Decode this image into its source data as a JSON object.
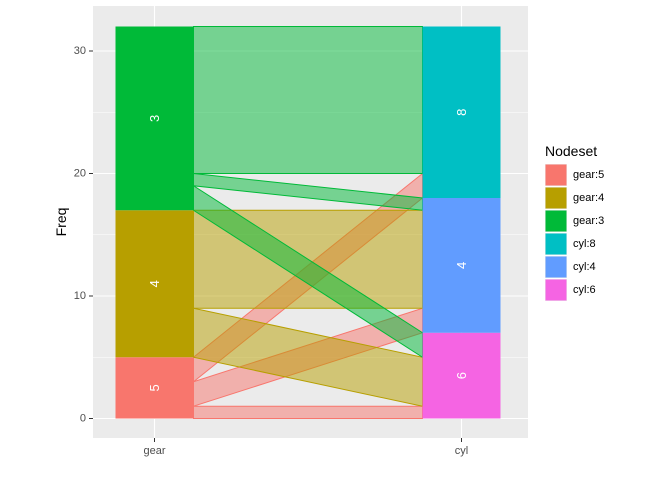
{
  "chart_data": {
    "type": "alluvial",
    "xlabel": "",
    "ylabel": "Freq",
    "axes": [
      "gear",
      "cyl"
    ],
    "ylim": [
      -1,
      33
    ],
    "yticks": [
      0,
      10,
      20,
      30
    ],
    "grid": true,
    "legend_position": "right",
    "legend_title": "Nodeset",
    "nodes": [
      {
        "axis": "gear",
        "id": "gear:5",
        "label": "5",
        "value": 5,
        "color": "#F8766D"
      },
      {
        "axis": "gear",
        "id": "gear:4",
        "label": "4",
        "value": 12,
        "color": "#B79F00"
      },
      {
        "axis": "gear",
        "id": "gear:3",
        "label": "3",
        "value": 15,
        "color": "#00BA38"
      },
      {
        "axis": "cyl",
        "id": "cyl:6",
        "label": "6",
        "value": 7,
        "color": "#F564E3"
      },
      {
        "axis": "cyl",
        "id": "cyl:4",
        "label": "4",
        "value": 11,
        "color": "#619CFF"
      },
      {
        "axis": "cyl",
        "id": "cyl:8",
        "label": "8",
        "value": 14,
        "color": "#00BFC4"
      }
    ],
    "flows": [
      {
        "from": "gear:5",
        "to": "cyl:6",
        "value": 1
      },
      {
        "from": "gear:5",
        "to": "cyl:4",
        "value": 2
      },
      {
        "from": "gear:5",
        "to": "cyl:8",
        "value": 2
      },
      {
        "from": "gear:4",
        "to": "cyl:6",
        "value": 4
      },
      {
        "from": "gear:4",
        "to": "cyl:4",
        "value": 8
      },
      {
        "from": "gear:3",
        "to": "cyl:6",
        "value": 2
      },
      {
        "from": "gear:3",
        "to": "cyl:4",
        "value": 1
      },
      {
        "from": "gear:3",
        "to": "cyl:8",
        "value": 12
      }
    ],
    "legend": [
      {
        "label": "gear:5",
        "color": "#F8766D"
      },
      {
        "label": "gear:4",
        "color": "#B79F00"
      },
      {
        "label": "gear:3",
        "color": "#00BA38"
      },
      {
        "label": "cyl:8",
        "color": "#00BFC4"
      },
      {
        "label": "cyl:4",
        "color": "#619CFF"
      },
      {
        "label": "cyl:6",
        "color": "#F564E3"
      }
    ]
  },
  "colors": {
    "panel_background": "#EBEBEB",
    "grid_major": "#FFFFFF"
  }
}
